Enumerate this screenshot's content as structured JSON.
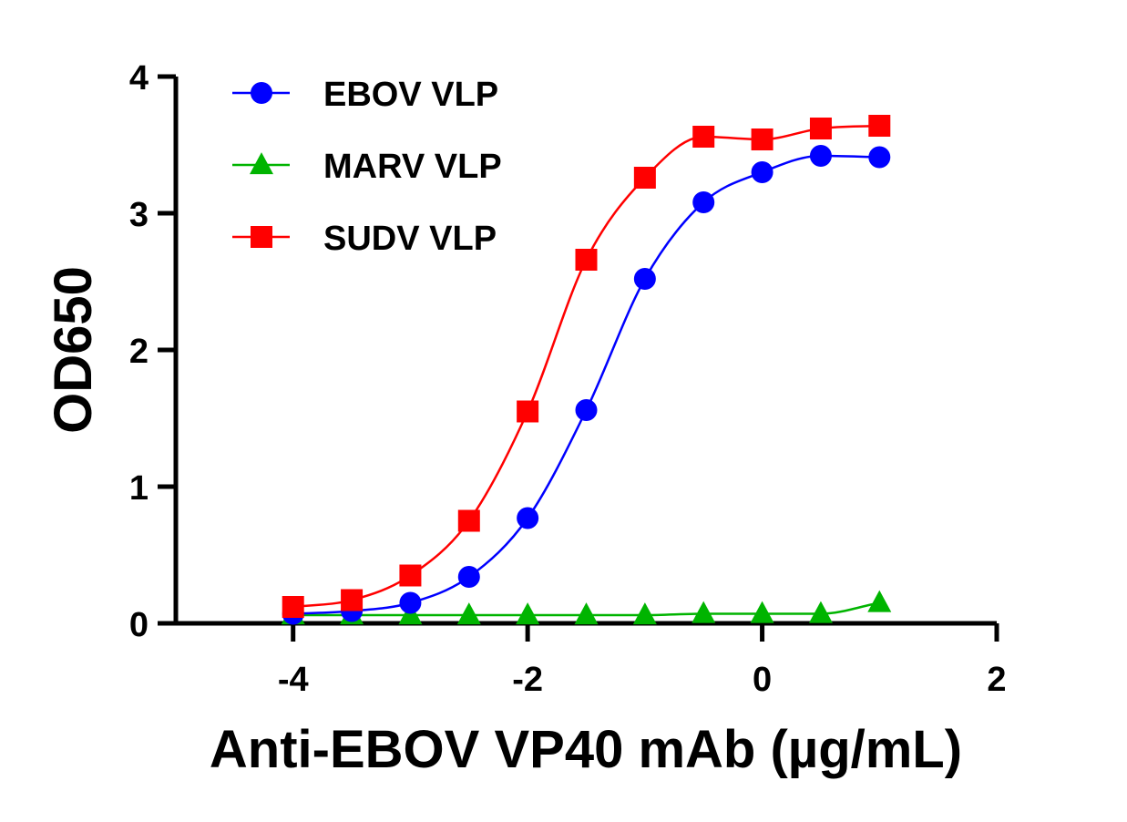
{
  "chart_data": {
    "type": "scatter",
    "title": "",
    "xlabel": "Anti-EBOV VP40 mAb (µg/mL)",
    "ylabel": "OD650",
    "xlim": [
      -5,
      2
    ],
    "ylim": [
      0,
      4
    ],
    "xticks": [
      -4,
      -2,
      0,
      2
    ],
    "yticks": [
      0,
      1,
      2,
      3,
      4
    ],
    "grid": false,
    "legend_position": "top-left",
    "fit": "sigmoidal curve",
    "series": [
      {
        "name": "EBOV VLP",
        "color": "#0000ff",
        "marker": "circle",
        "x": [
          -4,
          -3.5,
          -3,
          -2.5,
          -2,
          -1.5,
          -1,
          -0.5,
          0,
          0.5,
          1
        ],
        "y": [
          0.07,
          0.09,
          0.15,
          0.34,
          0.77,
          1.56,
          2.52,
          3.08,
          3.3,
          3.42,
          3.41
        ]
      },
      {
        "name": "MARV VLP",
        "color": "#00b400",
        "marker": "triangle",
        "x": [
          -4,
          -3.5,
          -3,
          -2.5,
          -2,
          -1.5,
          -1,
          -0.5,
          0,
          0.5,
          1
        ],
        "y": [
          0.06,
          0.06,
          0.06,
          0.06,
          0.06,
          0.06,
          0.06,
          0.07,
          0.07,
          0.07,
          0.15
        ]
      },
      {
        "name": "SUDV VLP",
        "color": "#ff0000",
        "marker": "square",
        "x": [
          -4,
          -3.5,
          -3,
          -2.5,
          -2,
          -1.5,
          -1,
          -0.5,
          0,
          0.5,
          1
        ],
        "y": [
          0.12,
          0.17,
          0.35,
          0.75,
          1.55,
          2.66,
          3.26,
          3.56,
          3.54,
          3.62,
          3.64
        ]
      }
    ]
  }
}
